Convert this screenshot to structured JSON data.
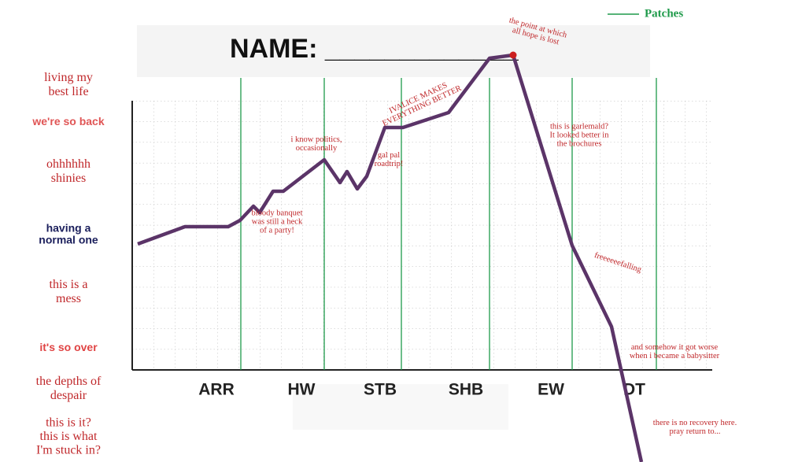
{
  "chart_data": {
    "type": "line",
    "header": "NAME: _____________",
    "xlim": [
      0,
      100
    ],
    "ylim": [
      0,
      58.7
    ],
    "xticks": [
      {
        "value": 27.5,
        "label": "ARR"
      },
      {
        "value": 38.3,
        "label": "HW"
      },
      {
        "value": 48.3,
        "label": "STB"
      },
      {
        "value": 59.2,
        "label": "SHB"
      },
      {
        "value": 70,
        "label": "EW"
      },
      {
        "value": 80.6,
        "label": "DT"
      }
    ],
    "yticks": [
      {
        "value": 47.9,
        "label": "living my best life"
      },
      {
        "value": 43.2,
        "label": "we're so back"
      },
      {
        "value": 36.9,
        "label": "ohhhhhh shinies"
      },
      {
        "value": 28.9,
        "label": "having a normal one"
      },
      {
        "value": 21.6,
        "label": "this is a mess"
      },
      {
        "value": 14.5,
        "label": "it's so over"
      },
      {
        "value": 9.3,
        "label": "the depths of despair"
      },
      {
        "value": 3.2,
        "label": "this is it? this is what I'm stuck in?"
      }
    ],
    "patches": {
      "name": "Patches",
      "color": "#1e9a4a",
      "x": [
        30.6,
        41.2,
        51,
        62.2,
        72.7,
        83.4
      ]
    },
    "series": [
      {
        "color": "#5b3468",
        "x": [
          17.5,
          23.5,
          29,
          30.5,
          32.2,
          33,
          34.7,
          36,
          41.2,
          43.2,
          44.1,
          45.4,
          46.6,
          48.9,
          51.2,
          57,
          62.2,
          65.2,
          72.7,
          77.7,
          81.5
        ],
        "values": [
          27.7,
          29.9,
          29.9,
          30.7,
          32.5,
          31.7,
          34.4,
          34.4,
          38.4,
          35.5,
          36.9,
          34.7,
          36.3,
          42.5,
          42.5,
          44.4,
          51.3,
          51.7,
          27.5,
          17.2,
          0
        ]
      }
    ],
    "highlight_color": "#cc1f1f",
    "annotations": [
      [
        "bloody banquet",
        "was still a heck",
        "of a party!"
      ],
      [
        "i know politics,",
        "occasionally"
      ],
      [
        "gal pal",
        "roadtrip!"
      ],
      [
        "IVALICE MAKES",
        "EVERYTHING BETTER"
      ],
      [
        "the point at which",
        "all hope is lost"
      ],
      [
        "this is garlemald?",
        "It looked better in",
        "the brochures"
      ],
      [
        "freeeeeefalling"
      ],
      [
        "and somehow it got worse",
        "when i became a babysitter"
      ],
      [
        "there is no recovery here.",
        "pray return to..."
      ]
    ]
  }
}
